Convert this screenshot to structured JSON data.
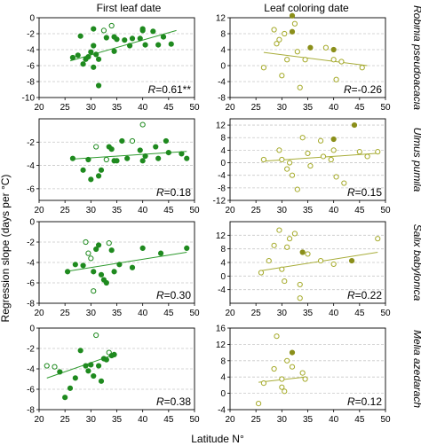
{
  "figure": {
    "column_titles": [
      "First leaf date",
      "Leaf coloring date"
    ],
    "ylabel": "Regression slope (days per °C)",
    "xlabel": "Latitude N°",
    "colors": {
      "first_leaf": "#1f8a1f",
      "leaf_coloring_fill": "#8b8f1a",
      "leaf_coloring_open": "#a5aa2a",
      "trend_first_leaf": "#2e9a2e",
      "trend_leaf_coloring": "#a8ad3a",
      "grid": "#c8c8c8"
    }
  },
  "chart_data": [
    {
      "type": "scatter",
      "species": "Robinia pseudoacacia",
      "column": "First leaf date",
      "xlim": [
        20,
        50
      ],
      "ylim": [
        -10,
        0
      ],
      "xticks": [
        20,
        25,
        30,
        35,
        40,
        45,
        50
      ],
      "yticks": [
        -10,
        -8,
        -6,
        -4,
        -2,
        0
      ],
      "grid": true,
      "r_label": "0.61**",
      "trend": [
        [
          26,
          -5.4
        ],
        [
          46.5,
          -1.6
        ]
      ],
      "points": [
        {
          "x": 26.5,
          "y": -5.0,
          "filled": true
        },
        {
          "x": 27.5,
          "y": -4.7,
          "filled": true
        },
        {
          "x": 28.0,
          "y": -2.3,
          "filled": true
        },
        {
          "x": 28.5,
          "y": -5.8,
          "filled": true
        },
        {
          "x": 29.0,
          "y": -5.2,
          "filled": true
        },
        {
          "x": 29.5,
          "y": -4.9,
          "filled": true
        },
        {
          "x": 30.0,
          "y": -4.3,
          "filled": true
        },
        {
          "x": 30.5,
          "y": -3.5,
          "filled": true
        },
        {
          "x": 30.5,
          "y": -1.4,
          "filled": true
        },
        {
          "x": 30.5,
          "y": -6.2,
          "filled": true
        },
        {
          "x": 31.0,
          "y": -4.6,
          "filled": true
        },
        {
          "x": 31.5,
          "y": -8.5,
          "filled": true
        },
        {
          "x": 31.5,
          "y": -5.2,
          "filled": true
        },
        {
          "x": 32.5,
          "y": -1.6,
          "filled": false
        },
        {
          "x": 33.0,
          "y": -2.5,
          "filled": true
        },
        {
          "x": 34.0,
          "y": -1.0,
          "filled": false
        },
        {
          "x": 34.5,
          "y": -2.4,
          "filled": true
        },
        {
          "x": 34.5,
          "y": -4.2,
          "filled": true
        },
        {
          "x": 35.0,
          "y": -2.7,
          "filled": true
        },
        {
          "x": 36.5,
          "y": -2.8,
          "filled": true
        },
        {
          "x": 37.5,
          "y": -3.5,
          "filled": true
        },
        {
          "x": 38.0,
          "y": -2.6,
          "filled": true
        },
        {
          "x": 39.5,
          "y": -2.6,
          "filled": true
        },
        {
          "x": 40.0,
          "y": -1.4,
          "filled": true
        },
        {
          "x": 40.0,
          "y": -1.6,
          "filled": true
        },
        {
          "x": 40.5,
          "y": -3.4,
          "filled": true
        },
        {
          "x": 42.0,
          "y": -1.7,
          "filled": true
        },
        {
          "x": 43.0,
          "y": -3.4,
          "filled": true
        },
        {
          "x": 44.0,
          "y": -2.4,
          "filled": true
        },
        {
          "x": 45.5,
          "y": -3.3,
          "filled": true
        }
      ]
    },
    {
      "type": "scatter",
      "species": "Robinia pseudoacacia",
      "column": "Leaf coloring date",
      "xlim": [
        20,
        50
      ],
      "ylim": [
        -8,
        12
      ],
      "xticks": [
        20,
        25,
        30,
        35,
        40,
        45,
        50
      ],
      "yticks": [
        -8,
        -4,
        0,
        4,
        8,
        12
      ],
      "grid": true,
      "r_label": "-0.26",
      "trend": [
        [
          26.5,
          3.3
        ],
        [
          46.5,
          0.0
        ]
      ],
      "points": [
        {
          "x": 26.5,
          "y": -0.5,
          "filled": false
        },
        {
          "x": 28.5,
          "y": 9.0,
          "filled": false
        },
        {
          "x": 29.0,
          "y": 5.5,
          "filled": false
        },
        {
          "x": 29.5,
          "y": 6.5,
          "filled": false
        },
        {
          "x": 30.0,
          "y": -2.5,
          "filled": false
        },
        {
          "x": 30.5,
          "y": 8.0,
          "filled": false
        },
        {
          "x": 31.0,
          "y": 1.5,
          "filled": false
        },
        {
          "x": 32.0,
          "y": 8.5,
          "filled": true
        },
        {
          "x": 32.0,
          "y": 12.5,
          "filled": true
        },
        {
          "x": 32.5,
          "y": 10.5,
          "filled": false
        },
        {
          "x": 33.0,
          "y": 3.5,
          "filled": false
        },
        {
          "x": 33.5,
          "y": -5.5,
          "filled": false
        },
        {
          "x": 34.5,
          "y": 1.5,
          "filled": false
        },
        {
          "x": 35.5,
          "y": 4.5,
          "filled": true
        },
        {
          "x": 38.5,
          "y": 4.5,
          "filled": false
        },
        {
          "x": 40.0,
          "y": 4.0,
          "filled": true
        },
        {
          "x": 40.0,
          "y": 1.5,
          "filled": false
        },
        {
          "x": 40.5,
          "y": -3.5,
          "filled": false
        },
        {
          "x": 41.5,
          "y": 1.0,
          "filled": false
        },
        {
          "x": 45.5,
          "y": -0.5,
          "filled": false
        }
      ]
    },
    {
      "type": "scatter",
      "species": "Ulmus pumila",
      "column": "First leaf date",
      "xlim": [
        20,
        50
      ],
      "ylim": [
        -7,
        0
      ],
      "xticks": [
        20,
        25,
        30,
        35,
        40,
        45,
        50
      ],
      "yticks": [
        -6,
        -4,
        -2
      ],
      "grid": true,
      "r_label": "0.18",
      "trend": [
        [
          26.5,
          -3.45
        ],
        [
          48.5,
          -2.8
        ]
      ],
      "points": [
        {
          "x": 26.5,
          "y": -3.4,
          "filled": true
        },
        {
          "x": 28.5,
          "y": -4.4,
          "filled": true
        },
        {
          "x": 29.5,
          "y": -3.5,
          "filled": true
        },
        {
          "x": 30.0,
          "y": -5.2,
          "filled": true
        },
        {
          "x": 31.0,
          "y": -2.4,
          "filled": false
        },
        {
          "x": 31.5,
          "y": -4.9,
          "filled": true
        },
        {
          "x": 32.0,
          "y": -4.4,
          "filled": true
        },
        {
          "x": 33.0,
          "y": -3.5,
          "filled": false
        },
        {
          "x": 33.5,
          "y": -2.4,
          "filled": true
        },
        {
          "x": 34.0,
          "y": -2.6,
          "filled": true
        },
        {
          "x": 34.5,
          "y": -3.6,
          "filled": true
        },
        {
          "x": 35.0,
          "y": -3.6,
          "filled": true
        },
        {
          "x": 36.0,
          "y": -1.9,
          "filled": true
        },
        {
          "x": 37.0,
          "y": -3.4,
          "filled": true
        },
        {
          "x": 38.0,
          "y": -1.9,
          "filled": false
        },
        {
          "x": 39.5,
          "y": -2.7,
          "filled": true
        },
        {
          "x": 40.0,
          "y": -0.5,
          "filled": false
        },
        {
          "x": 40.0,
          "y": -3.6,
          "filled": true
        },
        {
          "x": 40.5,
          "y": -3.2,
          "filled": true
        },
        {
          "x": 42.5,
          "y": -2.4,
          "filled": true
        },
        {
          "x": 43.0,
          "y": -3.4,
          "filled": true
        },
        {
          "x": 44.5,
          "y": -1.9,
          "filled": true
        },
        {
          "x": 45.0,
          "y": -2.9,
          "filled": true
        },
        {
          "x": 47.5,
          "y": -3.0,
          "filled": true
        },
        {
          "x": 48.5,
          "y": -3.4,
          "filled": true
        }
      ]
    },
    {
      "type": "scatter",
      "species": "Ulmus pumila",
      "column": "Leaf coloring date",
      "xlim": [
        20,
        50
      ],
      "ylim": [
        -12,
        14
      ],
      "xticks": [
        20,
        25,
        30,
        35,
        40,
        45,
        50
      ],
      "yticks": [
        -12,
        -8,
        -4,
        0,
        4,
        8,
        12
      ],
      "grid": true,
      "r_label": "0.15",
      "trend": [
        [
          26.5,
          0.5
        ],
        [
          48.5,
          3.0
        ]
      ],
      "points": [
        {
          "x": 26.5,
          "y": 1.0,
          "filled": false
        },
        {
          "x": 29.5,
          "y": 4.0,
          "filled": false
        },
        {
          "x": 30.0,
          "y": 1.0,
          "filled": false
        },
        {
          "x": 31.0,
          "y": -2.0,
          "filled": false
        },
        {
          "x": 31.5,
          "y": 0.0,
          "filled": false
        },
        {
          "x": 32.0,
          "y": -4.0,
          "filled": false
        },
        {
          "x": 33.0,
          "y": -8.5,
          "filled": false
        },
        {
          "x": 34.0,
          "y": 8.0,
          "filled": false
        },
        {
          "x": 35.0,
          "y": 3.0,
          "filled": false
        },
        {
          "x": 35.5,
          "y": -1.0,
          "filled": false
        },
        {
          "x": 37.5,
          "y": 7.0,
          "filled": false
        },
        {
          "x": 38.0,
          "y": 2.0,
          "filled": false
        },
        {
          "x": 39.5,
          "y": 1.0,
          "filled": false
        },
        {
          "x": 40.0,
          "y": 7.5,
          "filled": true
        },
        {
          "x": 40.0,
          "y": 4.0,
          "filled": false
        },
        {
          "x": 40.5,
          "y": -4.5,
          "filled": false
        },
        {
          "x": 42.0,
          "y": -6.5,
          "filled": false
        },
        {
          "x": 44.0,
          "y": 12.0,
          "filled": true
        },
        {
          "x": 45.0,
          "y": 3.5,
          "filled": false
        },
        {
          "x": 46.5,
          "y": 2.0,
          "filled": false
        },
        {
          "x": 48.5,
          "y": 3.5,
          "filled": false
        }
      ]
    },
    {
      "type": "scatter",
      "species": "Salix babylonica",
      "column": "First leaf date",
      "xlim": [
        20,
        50
      ],
      "ylim": [
        -8,
        0
      ],
      "xticks": [
        20,
        25,
        30,
        35,
        40,
        45,
        50
      ],
      "yticks": [
        -8,
        -6,
        -4,
        -2,
        0
      ],
      "grid": true,
      "r_label": "0.30",
      "trend": [
        [
          25,
          -4.9
        ],
        [
          48.5,
          -3.0
        ]
      ],
      "points": [
        {
          "x": 25.5,
          "y": -4.9,
          "filled": true
        },
        {
          "x": 27.0,
          "y": -4.2,
          "filled": true
        },
        {
          "x": 28.5,
          "y": -4.3,
          "filled": true
        },
        {
          "x": 29.0,
          "y": -2.0,
          "filled": false
        },
        {
          "x": 29.5,
          "y": -3.1,
          "filled": false
        },
        {
          "x": 30.0,
          "y": -3.6,
          "filled": false
        },
        {
          "x": 30.5,
          "y": -6.8,
          "filled": false
        },
        {
          "x": 30.5,
          "y": -4.9,
          "filled": true
        },
        {
          "x": 31.0,
          "y": -2.7,
          "filled": true
        },
        {
          "x": 31.5,
          "y": -2.3,
          "filled": true
        },
        {
          "x": 32.0,
          "y": -5.2,
          "filled": true
        },
        {
          "x": 32.5,
          "y": -5.7,
          "filled": true
        },
        {
          "x": 33.0,
          "y": -6.0,
          "filled": true
        },
        {
          "x": 33.5,
          "y": -2.1,
          "filled": false
        },
        {
          "x": 34.0,
          "y": -2.8,
          "filled": true
        },
        {
          "x": 34.5,
          "y": -4.9,
          "filled": true
        },
        {
          "x": 35.5,
          "y": -4.2,
          "filled": true
        },
        {
          "x": 38.0,
          "y": -4.5,
          "filled": true
        },
        {
          "x": 40.0,
          "y": -2.6,
          "filled": true
        },
        {
          "x": 43.5,
          "y": -3.1,
          "filled": true
        },
        {
          "x": 48.5,
          "y": -2.6,
          "filled": true
        }
      ]
    },
    {
      "type": "scatter",
      "species": "Salix babylonica",
      "column": "Leaf coloring date",
      "xlim": [
        20,
        50
      ],
      "ylim": [
        -8,
        16
      ],
      "xticks": [
        20,
        25,
        30,
        35,
        40,
        45,
        50
      ],
      "yticks": [
        -4,
        0,
        4,
        8,
        12
      ],
      "grid": true,
      "r_label": "0.22",
      "trend": [
        [
          26,
          1.6
        ],
        [
          48.5,
          7.0
        ]
      ],
      "points": [
        {
          "x": 26.0,
          "y": 1.0,
          "filled": false
        },
        {
          "x": 27.5,
          "y": 4.5,
          "filled": false
        },
        {
          "x": 28.5,
          "y": 9.0,
          "filled": false
        },
        {
          "x": 29.5,
          "y": 13.5,
          "filled": false
        },
        {
          "x": 30.0,
          "y": 2.0,
          "filled": false
        },
        {
          "x": 30.5,
          "y": -1.5,
          "filled": false
        },
        {
          "x": 31.0,
          "y": 8.5,
          "filled": false
        },
        {
          "x": 31.5,
          "y": 11.0,
          "filled": false
        },
        {
          "x": 32.5,
          "y": 12.5,
          "filled": false
        },
        {
          "x": 33.5,
          "y": -6.5,
          "filled": false
        },
        {
          "x": 33.5,
          "y": -2.5,
          "filled": false
        },
        {
          "x": 34.0,
          "y": 7.0,
          "filled": true
        },
        {
          "x": 35.0,
          "y": 6.5,
          "filled": false
        },
        {
          "x": 37.5,
          "y": 4.5,
          "filled": false
        },
        {
          "x": 40.0,
          "y": 3.5,
          "filled": false
        },
        {
          "x": 43.5,
          "y": 4.5,
          "filled": true
        },
        {
          "x": 48.5,
          "y": 11.0,
          "filled": false
        }
      ]
    },
    {
      "type": "scatter",
      "species": "Melia azedarach",
      "column": "First leaf date",
      "xlim": [
        20,
        50
      ],
      "ylim": [
        -8,
        0
      ],
      "xticks": [
        20,
        25,
        30,
        35,
        40,
        45,
        50
      ],
      "yticks": [
        -8,
        -6,
        -4,
        -2,
        0
      ],
      "grid": true,
      "r_label": "0.38",
      "trend": [
        [
          21.5,
          -4.9
        ],
        [
          34.5,
          -2.6
        ]
      ],
      "points": [
        {
          "x": 21.5,
          "y": -3.7,
          "filled": false
        },
        {
          "x": 23.0,
          "y": -3.8,
          "filled": false
        },
        {
          "x": 24.0,
          "y": -4.3,
          "filled": true
        },
        {
          "x": 25.0,
          "y": -6.8,
          "filled": true
        },
        {
          "x": 26.0,
          "y": -5.9,
          "filled": true
        },
        {
          "x": 27.0,
          "y": -4.9,
          "filled": true
        },
        {
          "x": 28.0,
          "y": -2.2,
          "filled": true
        },
        {
          "x": 29.0,
          "y": -3.7,
          "filled": true
        },
        {
          "x": 29.5,
          "y": -4.2,
          "filled": true
        },
        {
          "x": 30.0,
          "y": -3.6,
          "filled": true
        },
        {
          "x": 30.5,
          "y": -4.7,
          "filled": true
        },
        {
          "x": 31.0,
          "y": -0.7,
          "filled": false
        },
        {
          "x": 31.5,
          "y": -3.7,
          "filled": true
        },
        {
          "x": 32.0,
          "y": -5.2,
          "filled": true
        },
        {
          "x": 32.5,
          "y": -3.0,
          "filled": true
        },
        {
          "x": 33.0,
          "y": -3.1,
          "filled": true
        },
        {
          "x": 33.5,
          "y": -2.4,
          "filled": false
        },
        {
          "x": 34.0,
          "y": -2.7,
          "filled": true
        },
        {
          "x": 34.5,
          "y": -2.6,
          "filled": true
        }
      ]
    },
    {
      "type": "scatter",
      "species": "Melia azedarach",
      "column": "Leaf coloring date",
      "xlim": [
        20,
        50
      ],
      "ylim": [
        -4,
        16
      ],
      "xticks": [
        20,
        25,
        30,
        35,
        40,
        45,
        50
      ],
      "yticks": [
        -4,
        0,
        4,
        8,
        12,
        16
      ],
      "grid": true,
      "r_label": "0.12",
      "trend": [
        [
          25.5,
          2.7
        ],
        [
          34.5,
          4.0
        ]
      ],
      "points": [
        {
          "x": 25.5,
          "y": -2.5,
          "filled": false
        },
        {
          "x": 26.5,
          "y": 2.5,
          "filled": false
        },
        {
          "x": 28.5,
          "y": 6.0,
          "filled": false
        },
        {
          "x": 29.0,
          "y": 14.0,
          "filled": false
        },
        {
          "x": 30.0,
          "y": 1.5,
          "filled": false
        },
        {
          "x": 30.0,
          "y": 3.5,
          "filled": false
        },
        {
          "x": 30.5,
          "y": 0.5,
          "filled": false
        },
        {
          "x": 31.0,
          "y": 8.0,
          "filled": false
        },
        {
          "x": 32.0,
          "y": 10.0,
          "filled": true
        },
        {
          "x": 32.0,
          "y": 6.5,
          "filled": false
        },
        {
          "x": 34.0,
          "y": 5.0,
          "filled": false
        },
        {
          "x": 34.5,
          "y": 3.5,
          "filled": false
        }
      ]
    }
  ]
}
